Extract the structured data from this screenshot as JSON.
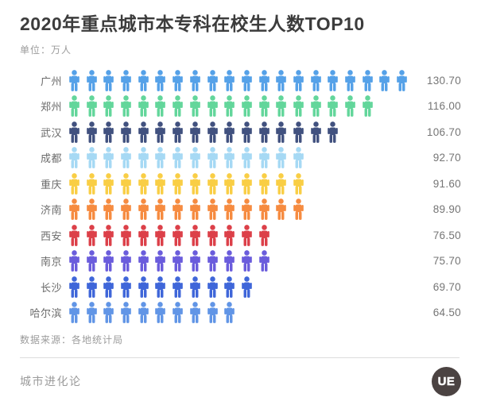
{
  "header": {
    "title": "2020年重点城市本专科在校生人数TOP10",
    "unit_label": "单位：万人"
  },
  "chart_data": {
    "type": "bar",
    "variant": "pictogram",
    "title": "2020年重点城市本专科在校生人数TOP10",
    "unit": "万人",
    "orientation": "horizontal",
    "categories": [
      "广州",
      "郑州",
      "武汉",
      "成都",
      "重庆",
      "济南",
      "西安",
      "南京",
      "长沙",
      "哈尔滨"
    ],
    "values": [
      130.7,
      116.0,
      106.7,
      92.7,
      91.6,
      89.9,
      76.5,
      75.7,
      69.7,
      64.5
    ],
    "value_labels": [
      "130.70",
      "116.00",
      "106.70",
      "92.70",
      "91.60",
      "89.90",
      "76.50",
      "75.70",
      "69.70",
      "64.50"
    ],
    "icon_unit_per_glyph": 6.535,
    "rows": [
      {
        "city": "广州",
        "value": "130.70",
        "icons": 20,
        "color": "#55a1e8"
      },
      {
        "city": "郑州",
        "value": "116.00",
        "icons": 18,
        "color": "#63d69b"
      },
      {
        "city": "武汉",
        "value": "106.70",
        "icons": 16,
        "color": "#41517f"
      },
      {
        "city": "成都",
        "value": "92.70",
        "icons": 14,
        "color": "#a6d9f4"
      },
      {
        "city": "重庆",
        "value": "91.60",
        "icons": 14,
        "color": "#f9ce45"
      },
      {
        "city": "济南",
        "value": "89.90",
        "icons": 14,
        "color": "#f68b40"
      },
      {
        "city": "西安",
        "value": "76.50",
        "icons": 12,
        "color": "#dc4049"
      },
      {
        "city": "南京",
        "value": "75.70",
        "icons": 12,
        "color": "#6a5cdc"
      },
      {
        "city": "长沙",
        "value": "69.70",
        "icons": 11,
        "color": "#3f66d9"
      },
      {
        "city": "哈尔滨",
        "value": "64.50",
        "icons": 10,
        "color": "#6195e6"
      }
    ]
  },
  "footer": {
    "source": "数据来源：各地统计局",
    "brand": "城市进化论",
    "logo_text": "UE",
    "logo_bg": "#4b4342"
  }
}
